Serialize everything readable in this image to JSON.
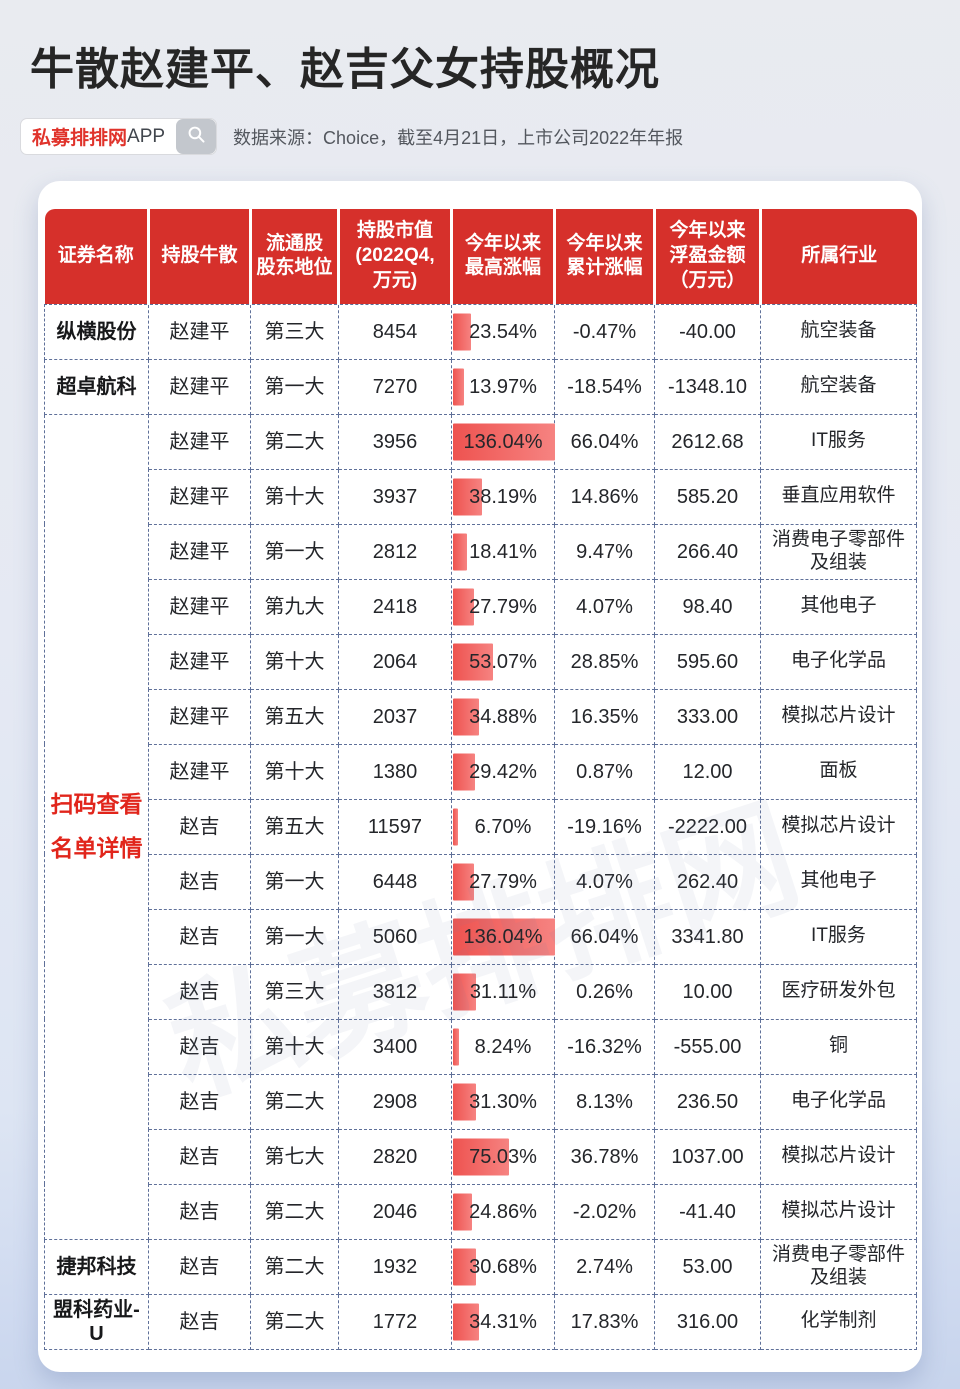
{
  "page": {
    "title": "牛散赵建平、赵吉父女持股概况",
    "badge": {
      "brand": "私募排排网",
      "suffix": "APP"
    },
    "source_note": "数据来源：Choice，截至4月21日，上市公司2022年年报",
    "watermark": "私募排排网"
  },
  "colors": {
    "header_red": "#d6302b",
    "bar_red": "#ee5350",
    "note_red": "#e1251b",
    "dash_border": "#5f7099",
    "badge_brand_red": "#e0332b",
    "page_bg_bottom": "#c7d4ec"
  },
  "chart_data": {
    "type": "table",
    "title": "牛散赵建平、赵吉父女持股概况",
    "columns": [
      "证券名称",
      "持股牛散",
      "流通股\n股东地位",
      "持股市值\n(2022Q4,\n万元)",
      "今年以来\n最高涨幅",
      "今年以来\n累计涨幅",
      "今年以来\n浮盈金额\n（万元）",
      "所属行业"
    ],
    "bar_column": "今年以来最高涨幅",
    "bar_scale_max": 136.04,
    "merged_cell": {
      "row_start": 2,
      "row_span": 15,
      "lines": [
        "扫码查看",
        "名单详情"
      ]
    },
    "rows": [
      {
        "name": "纵横股份",
        "holder": "赵建平",
        "rank": "第三大",
        "market_value": "8454",
        "max_gain": "23.54%",
        "max_gain_value": 23.54,
        "ytd_gain": "-0.47%",
        "profit": "-40.00",
        "industry": "航空装备"
      },
      {
        "name": "超卓航科",
        "holder": "赵建平",
        "rank": "第一大",
        "market_value": "7270",
        "max_gain": "13.97%",
        "max_gain_value": 13.97,
        "ytd_gain": "-18.54%",
        "profit": "-1348.10",
        "industry": "航空装备"
      },
      {
        "name": "",
        "holder": "赵建平",
        "rank": "第二大",
        "market_value": "3956",
        "max_gain": "136.04%",
        "max_gain_value": 136.04,
        "ytd_gain": "66.04%",
        "profit": "2612.68",
        "industry": "IT服务"
      },
      {
        "name": "",
        "holder": "赵建平",
        "rank": "第十大",
        "market_value": "3937",
        "max_gain": "38.19%",
        "max_gain_value": 38.19,
        "ytd_gain": "14.86%",
        "profit": "585.20",
        "industry": "垂直应用软件"
      },
      {
        "name": "",
        "holder": "赵建平",
        "rank": "第一大",
        "market_value": "2812",
        "max_gain": "18.41%",
        "max_gain_value": 18.41,
        "ytd_gain": "9.47%",
        "profit": "266.40",
        "industry": "消费电子零部件及组装"
      },
      {
        "name": "",
        "holder": "赵建平",
        "rank": "第九大",
        "market_value": "2418",
        "max_gain": "27.79%",
        "max_gain_value": 27.79,
        "ytd_gain": "4.07%",
        "profit": "98.40",
        "industry": "其他电子"
      },
      {
        "name": "",
        "holder": "赵建平",
        "rank": "第十大",
        "market_value": "2064",
        "max_gain": "53.07%",
        "max_gain_value": 53.07,
        "ytd_gain": "28.85%",
        "profit": "595.60",
        "industry": "电子化学品"
      },
      {
        "name": "",
        "holder": "赵建平",
        "rank": "第五大",
        "market_value": "2037",
        "max_gain": "34.88%",
        "max_gain_value": 34.88,
        "ytd_gain": "16.35%",
        "profit": "333.00",
        "industry": "模拟芯片设计"
      },
      {
        "name": "",
        "holder": "赵建平",
        "rank": "第十大",
        "market_value": "1380",
        "max_gain": "29.42%",
        "max_gain_value": 29.42,
        "ytd_gain": "0.87%",
        "profit": "12.00",
        "industry": "面板"
      },
      {
        "name": "",
        "holder": "赵吉",
        "rank": "第五大",
        "market_value": "11597",
        "max_gain": "6.70%",
        "max_gain_value": 6.7,
        "ytd_gain": "-19.16%",
        "profit": "-2222.00",
        "industry": "模拟芯片设计"
      },
      {
        "name": "",
        "holder": "赵吉",
        "rank": "第一大",
        "market_value": "6448",
        "max_gain": "27.79%",
        "max_gain_value": 27.79,
        "ytd_gain": "4.07%",
        "profit": "262.40",
        "industry": "其他电子"
      },
      {
        "name": "",
        "holder": "赵吉",
        "rank": "第一大",
        "market_value": "5060",
        "max_gain": "136.04%",
        "max_gain_value": 136.04,
        "ytd_gain": "66.04%",
        "profit": "3341.80",
        "industry": "IT服务"
      },
      {
        "name": "",
        "holder": "赵吉",
        "rank": "第三大",
        "market_value": "3812",
        "max_gain": "31.11%",
        "max_gain_value": 31.11,
        "ytd_gain": "0.26%",
        "profit": "10.00",
        "industry": "医疗研发外包"
      },
      {
        "name": "",
        "holder": "赵吉",
        "rank": "第十大",
        "market_value": "3400",
        "max_gain": "8.24%",
        "max_gain_value": 8.24,
        "ytd_gain": "-16.32%",
        "profit": "-555.00",
        "industry": "铜"
      },
      {
        "name": "",
        "holder": "赵吉",
        "rank": "第二大",
        "market_value": "2908",
        "max_gain": "31.30%",
        "max_gain_value": 31.3,
        "ytd_gain": "8.13%",
        "profit": "236.50",
        "industry": "电子化学品"
      },
      {
        "name": "",
        "holder": "赵吉",
        "rank": "第七大",
        "market_value": "2820",
        "max_gain": "75.03%",
        "max_gain_value": 75.03,
        "ytd_gain": "36.78%",
        "profit": "1037.00",
        "industry": "模拟芯片设计"
      },
      {
        "name": "",
        "holder": "赵吉",
        "rank": "第二大",
        "market_value": "2046",
        "max_gain": "24.86%",
        "max_gain_value": 24.86,
        "ytd_gain": "-2.02%",
        "profit": "-41.40",
        "industry": "模拟芯片设计"
      },
      {
        "name": "捷邦科技",
        "holder": "赵吉",
        "rank": "第二大",
        "market_value": "1932",
        "max_gain": "30.68%",
        "max_gain_value": 30.68,
        "ytd_gain": "2.74%",
        "profit": "53.00",
        "industry": "消费电子零部件及组装"
      },
      {
        "name": "盟科药业-U",
        "holder": "赵吉",
        "rank": "第二大",
        "market_value": "1772",
        "max_gain": "34.31%",
        "max_gain_value": 34.31,
        "ytd_gain": "17.83%",
        "profit": "316.00",
        "industry": "化学制剂"
      }
    ]
  }
}
